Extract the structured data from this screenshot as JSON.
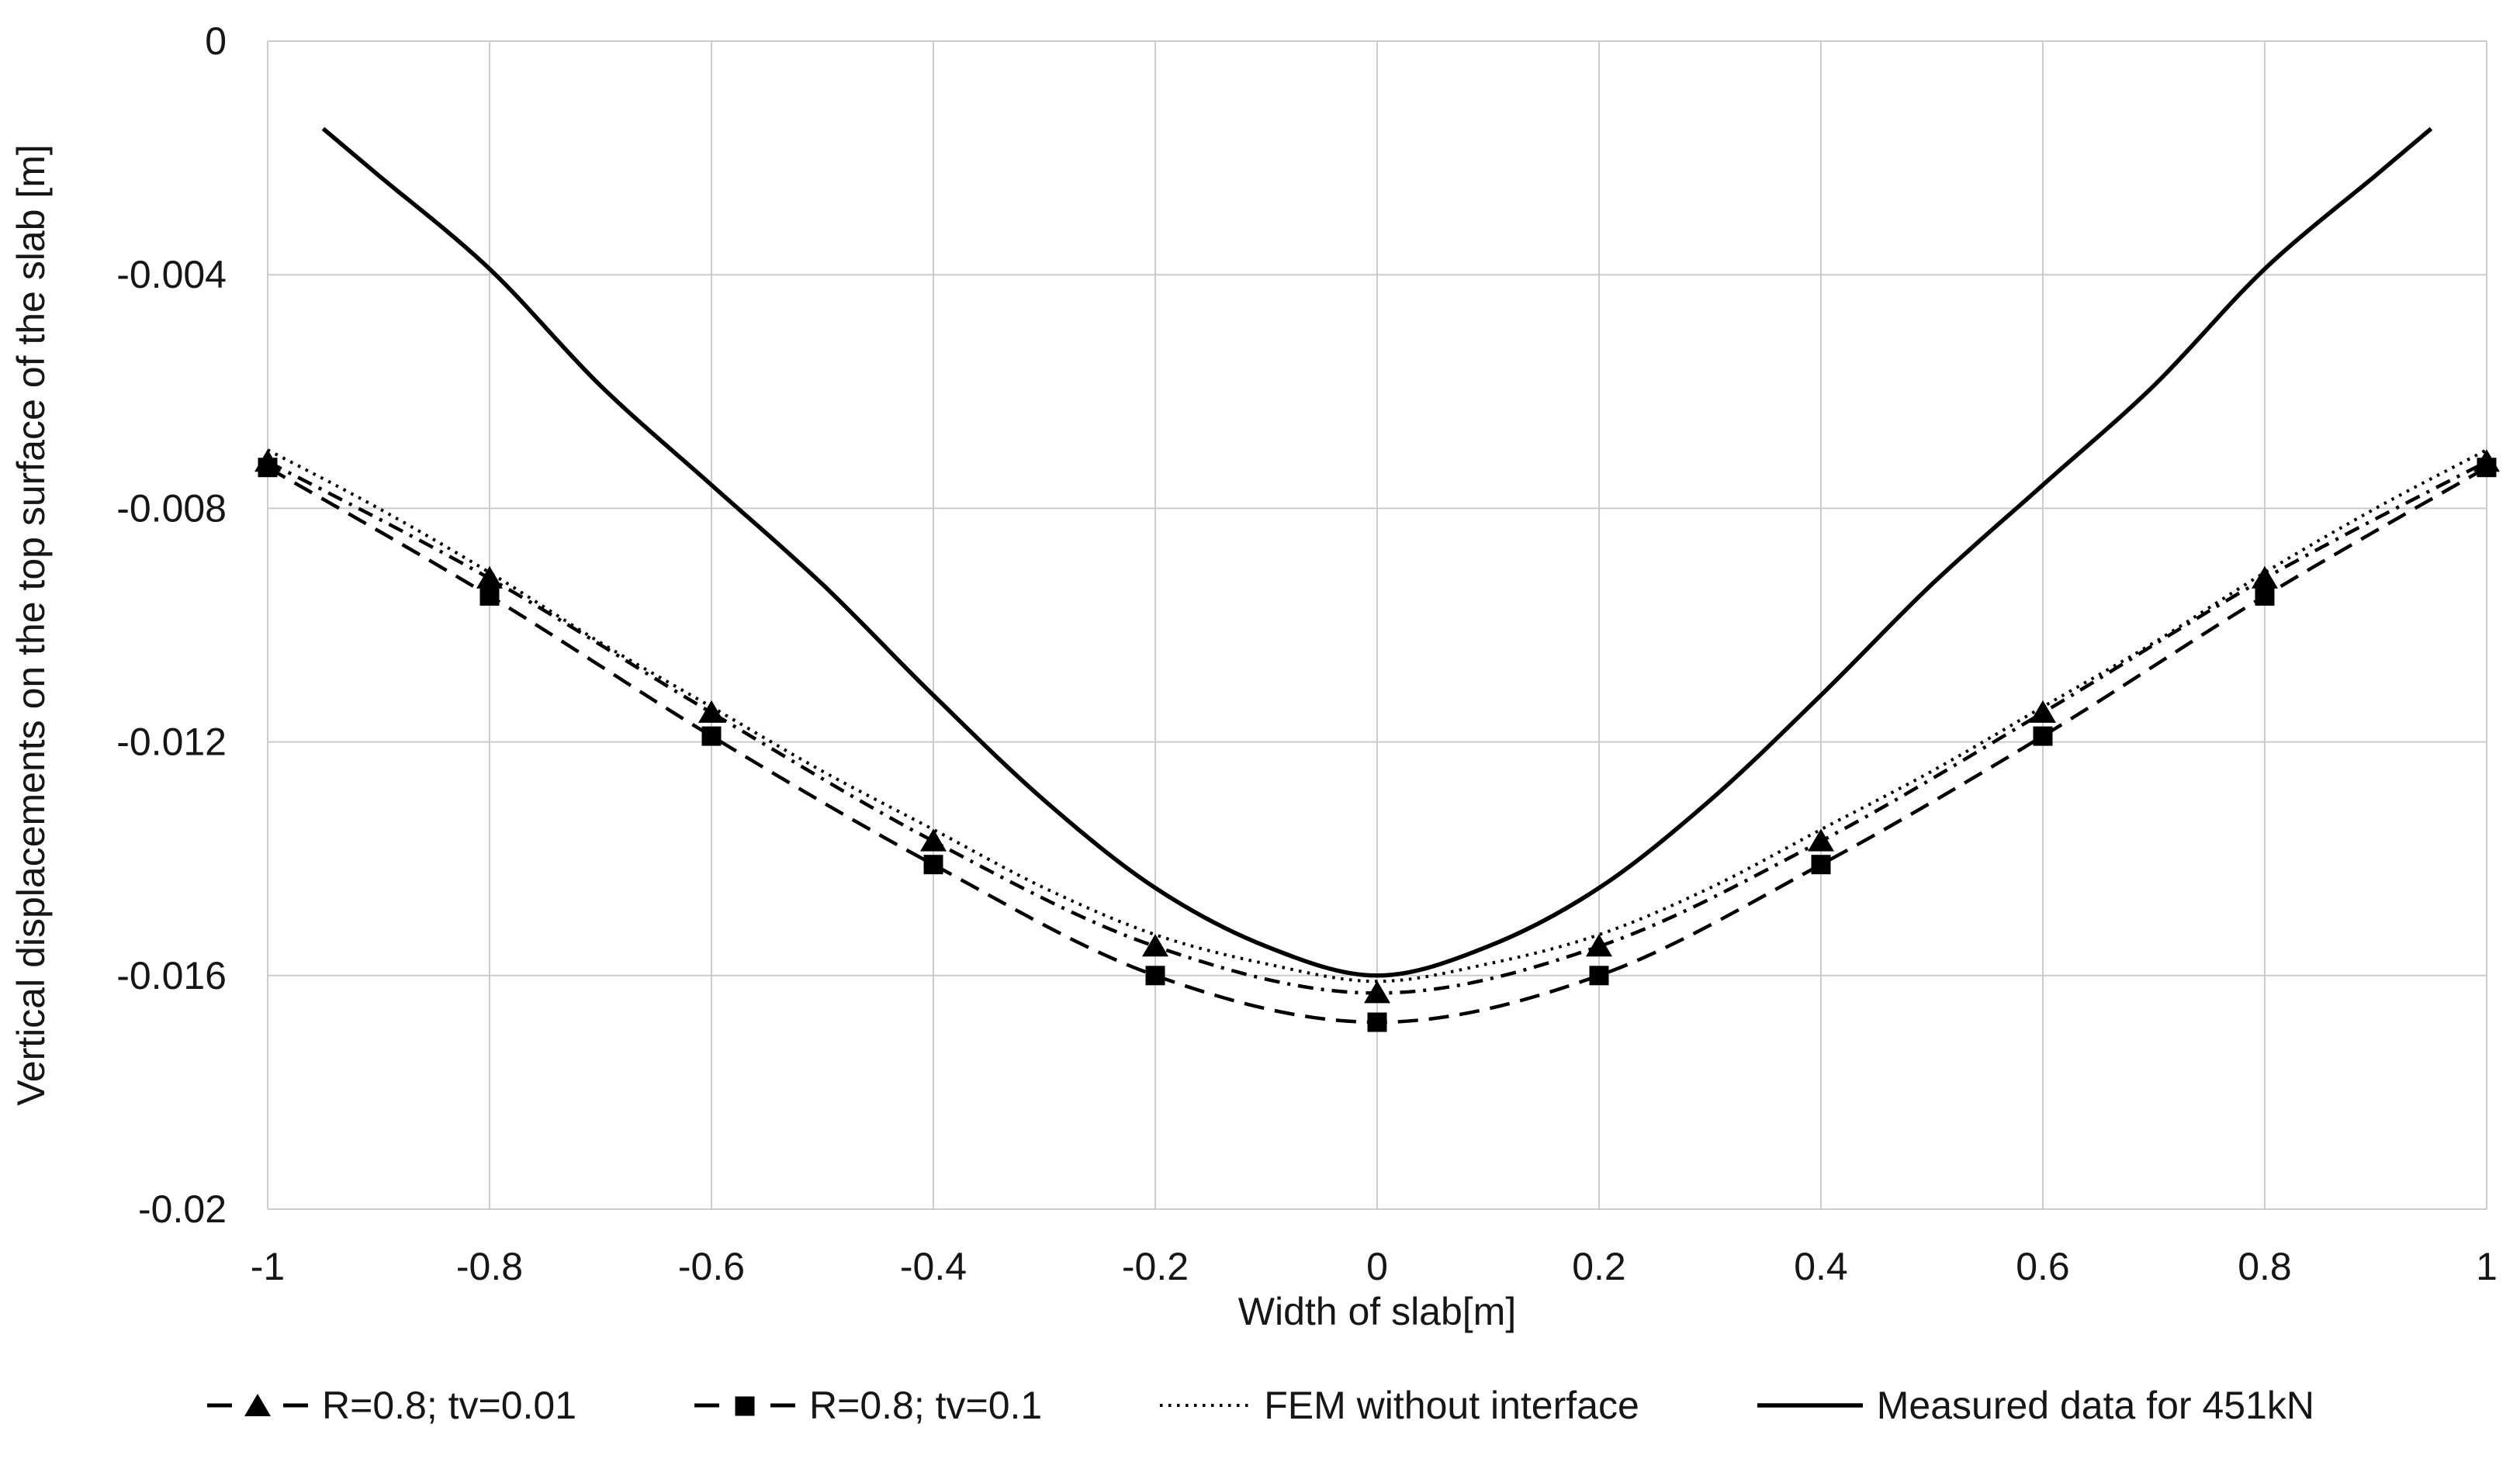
{
  "chart_data": {
    "type": "line",
    "title": "",
    "xlabel": "Width of slab[m]",
    "ylabel": "Vertical displacements on the top surface of the slab [m]",
    "xlim": [
      -1,
      1
    ],
    "ylim": [
      -0.02,
      0
    ],
    "grid": true,
    "legend_position": "bottom",
    "background_color": "#ffffff",
    "gridline_color": "#cccccc",
    "text_color": "#161616",
    "x_ticks": [
      -1,
      -0.8,
      -0.6,
      -0.4,
      -0.2,
      0,
      0.2,
      0.4,
      0.6,
      0.8,
      1
    ],
    "x_tick_labels": [
      "-1",
      "-0.8",
      "-0.6",
      "-0.4",
      "-0.2",
      "0",
      "0.2",
      "0.4",
      "0.6",
      "0.8",
      "1"
    ],
    "y_ticks": [
      0,
      -0.004,
      -0.008,
      -0.012,
      -0.016,
      -0.02
    ],
    "y_tick_labels": [
      "0",
      "-0.004",
      "-0.008",
      "-0.012",
      "-0.016",
      "-0.02"
    ],
    "series": [
      {
        "name": "R=0.8; tv=0.01",
        "color": "#000000",
        "line_style": "dashdot",
        "marker": "triangle",
        "x": [
          -1,
          -0.8,
          -0.6,
          -0.4,
          -0.2,
          0,
          0.2,
          0.4,
          0.6,
          0.8,
          1
        ],
        "y": [
          -0.0072,
          -0.0092,
          -0.0115,
          -0.0137,
          -0.0155,
          -0.0163,
          -0.0155,
          -0.0137,
          -0.0115,
          -0.0092,
          -0.0072
        ]
      },
      {
        "name": "R=0.8; tv=0.1",
        "color": "#000000",
        "line_style": "dashed",
        "marker": "square",
        "x": [
          -1,
          -0.8,
          -0.6,
          -0.4,
          -0.2,
          0,
          0.2,
          0.4,
          0.6,
          0.8,
          1
        ],
        "y": [
          -0.0073,
          -0.0095,
          -0.0119,
          -0.0141,
          -0.016,
          -0.0168,
          -0.016,
          -0.0141,
          -0.0119,
          -0.0095,
          -0.0073
        ]
      },
      {
        "name": "FEM without interface",
        "color": "#000000",
        "line_style": "dotted",
        "marker": "none",
        "x": [
          -1,
          -0.9,
          -0.8,
          -0.7,
          -0.6,
          -0.5,
          -0.4,
          -0.3,
          -0.2,
          -0.1,
          0,
          0.1,
          0.2,
          0.3,
          0.4,
          0.5,
          0.6,
          0.7,
          0.8,
          0.9,
          1
        ],
        "y": [
          -0.007,
          -0.008,
          -0.0091,
          -0.0103,
          -0.0114,
          -0.0125,
          -0.0135,
          -0.0145,
          -0.0153,
          -0.0158,
          -0.0161,
          -0.0158,
          -0.0153,
          -0.0145,
          -0.0135,
          -0.0125,
          -0.0114,
          -0.0103,
          -0.0091,
          -0.008,
          -0.007
        ]
      },
      {
        "name": "Measured data for 451kN",
        "color": "#000000",
        "line_style": "solid",
        "marker": "none",
        "x": [
          -0.95,
          -0.9,
          -0.8,
          -0.7,
          -0.6,
          -0.5,
          -0.4,
          -0.3,
          -0.2,
          -0.1,
          0,
          0.1,
          0.2,
          0.3,
          0.4,
          0.5,
          0.6,
          0.7,
          0.8,
          0.9,
          0.95
        ],
        "y": [
          -0.0015,
          -0.0023,
          -0.0039,
          -0.0059,
          -0.0076,
          -0.0093,
          -0.0112,
          -0.013,
          -0.0145,
          -0.0155,
          -0.016,
          -0.0155,
          -0.0145,
          -0.013,
          -0.0112,
          -0.0093,
          -0.0076,
          -0.0059,
          -0.0039,
          -0.0023,
          -0.0015
        ]
      }
    ]
  }
}
